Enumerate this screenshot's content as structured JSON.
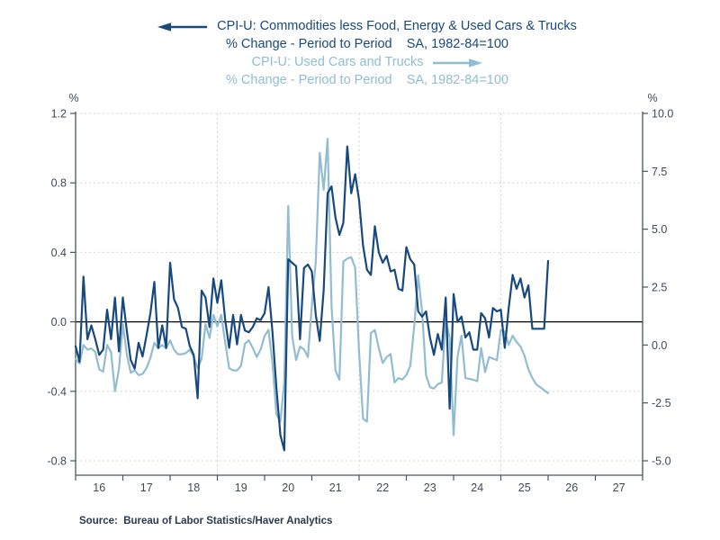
{
  "header": {
    "series1_title": "CPI-U: Commodities less Food, Energy & Used Cars & Trucks",
    "series1_subtitle": "% Change - Period to Period    SA, 1982-84=100",
    "series2_title": "CPI-U: Used Cars and Trucks",
    "series2_subtitle": "% Change - Period to Period    SA, 1982-84=100"
  },
  "source_note": "Source:  Bureau of Labor Statistics/Haver Analytics",
  "colors": {
    "series1": "#17497E",
    "series2": "#92BDD1",
    "series2_title_text": "#8FBDD3",
    "axis": "#4A5560",
    "tick_text": "#3E4A56",
    "gridline": "#D4D4D4",
    "zero_line": "#000000",
    "background": "#FFFFFF"
  },
  "chart_data": {
    "type": "line",
    "frequency": "monthly",
    "start_month": "2016-01",
    "end_month": "2026-01",
    "x_axis": {
      "year_labels": [
        "16",
        "17",
        "18",
        "19",
        "20",
        "21",
        "22",
        "23",
        "24",
        "25",
        "26",
        "27"
      ],
      "num_year_spans": 12,
      "vertical_gridline_year_indices": [
        3,
        6,
        9
      ]
    },
    "left_axis": {
      "unit": "%",
      "range": [
        -0.8,
        1.2
      ],
      "tick_labels": [
        "1.2",
        "0.8",
        "0.4",
        "0.0",
        "-0.4",
        "-0.8"
      ],
      "tick_values": [
        1.2,
        0.8,
        0.4,
        0.0,
        -0.4,
        -0.8
      ],
      "gridline_values": [
        1.2,
        0.8,
        0.4,
        -0.4,
        -0.8
      ],
      "zero_line_value": 0.0
    },
    "right_axis": {
      "unit": "%",
      "range": [
        -5.0,
        10.0
      ],
      "tick_labels": [
        "10.0",
        "7.5",
        "5.0",
        "2.5",
        "0.0",
        "-2.5",
        "-5.0"
      ],
      "tick_values": [
        10.0,
        7.5,
        5.0,
        2.5,
        0.0,
        -2.5,
        -5.0
      ]
    },
    "series": [
      {
        "name": "CPI-U: Commodities less Food, Energy & Used Cars & Trucks",
        "subtitle": "% Change - Period to Period  SA, 1982-84=100",
        "axis": "left",
        "values": [
          -0.14,
          -0.23,
          0.26,
          -0.1,
          -0.02,
          -0.1,
          -0.19,
          -0.16,
          0.07,
          -0.1,
          0.14,
          -0.17,
          0.14,
          -0.05,
          -0.22,
          -0.27,
          -0.12,
          -0.2,
          -0.08,
          0.05,
          0.23,
          -0.15,
          -0.02,
          -0.15,
          0.34,
          0.13,
          0.08,
          -0.03,
          -0.04,
          -0.14,
          -0.19,
          -0.44,
          0.18,
          0.14,
          -0.03,
          0.25,
          0.11,
          0.24,
          0.01,
          -0.15,
          0.04,
          -0.13,
          0.04,
          -0.05,
          -0.06,
          -0.03,
          0.02,
          0.01,
          0.05,
          0.2,
          -0.06,
          -0.38,
          -0.65,
          -0.74,
          0.36,
          0.34,
          0.32,
          -0.1,
          0.31,
          0.33,
          0.29,
          0.04,
          -0.11,
          0.18,
          0.74,
          0.78,
          0.6,
          0.5,
          0.57,
          1.01,
          0.74,
          0.85,
          0.7,
          0.44,
          0.3,
          0.27,
          0.55,
          0.4,
          0.34,
          0.38,
          0.29,
          0.3,
          0.19,
          0.18,
          0.43,
          0.36,
          0.33,
          0.06,
          0.03,
          0.06,
          -0.09,
          -0.19,
          -0.07,
          -0.16,
          0.14,
          -0.5,
          0.16,
          0.0,
          0.03,
          -0.09,
          -0.06,
          -0.16,
          -0.16,
          0.05,
          0.02,
          -0.09,
          0.08,
          0.06,
          0.07,
          -0.15,
          0.08,
          0.27,
          0.19,
          0.25,
          0.14,
          0.21,
          -0.04,
          -0.04,
          -0.04,
          -0.04,
          0.35
        ]
      },
      {
        "name": "CPI-U: Used Cars and Trucks",
        "subtitle": "% Change - Period to Period  SA, 1982-84=100",
        "axis": "right",
        "values": [
          -0.6,
          -0.8,
          0.0,
          -0.2,
          -0.15,
          -0.3,
          -1.05,
          -1.15,
          0.0,
          -0.3,
          -2.0,
          -1.05,
          0.9,
          -0.4,
          -1.2,
          -1.1,
          -1.3,
          -1.25,
          -1.0,
          -0.55,
          0.1,
          -0.15,
          0.0,
          -0.15,
          0.2,
          -0.2,
          -0.4,
          -0.4,
          -0.35,
          -0.2,
          -0.5,
          -1.0,
          -0.6,
          0.9,
          0.3,
          1.3,
          0.8,
          1.3,
          0.1,
          -1.0,
          -1.1,
          -1.1,
          -0.9,
          0.05,
          0.2,
          -0.13,
          -0.52,
          -0.19,
          0.39,
          0.65,
          -0.78,
          -2.98,
          -3.31,
          -1.6,
          6.0,
          0.39,
          -0.65,
          -0.07,
          -0.19,
          -0.52,
          1.7,
          3.6,
          8.3,
          6.7,
          8.9,
          1.7,
          -1.1,
          -1.5,
          3.6,
          3.73,
          3.79,
          3.34,
          -0.32,
          -3.18,
          -3.31,
          0.52,
          0.65,
          -0.13,
          -0.78,
          -0.52,
          -0.39,
          -1.62,
          -1.43,
          -1.49,
          -1.3,
          -0.9,
          0.8,
          3.0,
          1.43,
          -1.3,
          -1.82,
          -1.88,
          -1.69,
          -1.62,
          1.13,
          0.3,
          -3.9,
          -0.5,
          0.4,
          -1.43,
          -1.46,
          -1.5,
          -1.56,
          -0.13,
          -1.17,
          -0.52,
          -0.59,
          -0.65,
          0.65,
          0.58,
          0.0,
          0.4,
          0.13,
          -0.07,
          -0.46,
          -1.05,
          -1.43,
          -1.7,
          -1.82,
          -1.95,
          -2.08
        ]
      }
    ],
    "grid": "dashed horizontal at left ticks, dashed vertical every 3 years, solid black zero line",
    "legend_position": "title lines above chart with direction arrows"
  }
}
